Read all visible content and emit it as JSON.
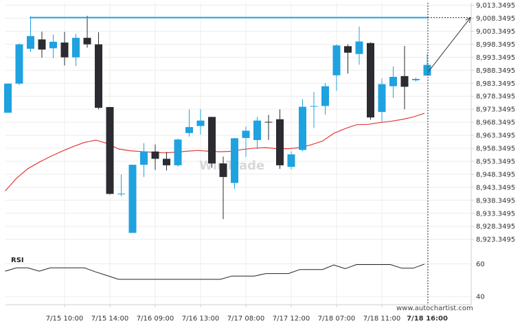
{
  "colors": {
    "bullish": "#1fa2e0",
    "bearish": "#2b2b31",
    "moving_average": "#e23a3a",
    "resistance": "#1fa2e0",
    "projection": "#333333",
    "rsi": "#222222",
    "grid": "#ececec",
    "axis": "#cfcfcf"
  },
  "watermark": "WinTrade",
  "credit": "www.autochartist.com",
  "chart_data": {
    "type": "candlestick",
    "y_ticks": [
      "9,013.3495",
      "9,008.3495",
      "9,003.3495",
      "8,998.3495",
      "8,993.3495",
      "8,988.3495",
      "8,983.3495",
      "8,978.3495",
      "8,973.3495",
      "8,968.3495",
      "8,963.3495",
      "8,958.3495",
      "8,953.3495",
      "8,948.3495",
      "8,943.3495",
      "8,938.3495",
      "8,933.3495",
      "8,928.3495",
      "8,923.3495"
    ],
    "y_tick_values": [
      9013.3495,
      9008.3495,
      9003.3495,
      8998.3495,
      8993.3495,
      8988.3495,
      8983.3495,
      8978.3495,
      8973.3495,
      8968.3495,
      8963.3495,
      8958.3495,
      8953.3495,
      8948.3495,
      8943.3495,
      8938.3495,
      8933.3495,
      8928.3495,
      8923.3495
    ],
    "ylim": [
      8919.3,
      9014.3
    ],
    "x_labels": [
      "7/15 10:00",
      "7/15 14:00",
      "7/16 09:00",
      "7/16 13:00",
      "7/17 08:00",
      "7/17 12:00",
      "7/18 07:00",
      "7/18 11:00",
      "7/18 16:00"
    ],
    "x_label_index": [
      5,
      9,
      13,
      17,
      21,
      25,
      29,
      33,
      37
    ],
    "x_label_bold_index": 8,
    "candles": [
      {
        "o": 8972.0,
        "h": 8983.2,
        "l": 8972.0,
        "c": 8983.2
      },
      {
        "o": 8983.2,
        "h": 8998.7,
        "l": 8982.6,
        "c": 8998.3
      },
      {
        "o": 8996.6,
        "h": 9009.2,
        "l": 8995.4,
        "c": 9001.5
      },
      {
        "o": 9000.2,
        "h": 9003.2,
        "l": 8993.2,
        "c": 8996.3
      },
      {
        "o": 8996.8,
        "h": 9002.1,
        "l": 8993.0,
        "c": 8999.3
      },
      {
        "o": 8999.0,
        "h": 9003.1,
        "l": 8990.2,
        "c": 8993.3
      },
      {
        "o": 8993.3,
        "h": 9002.3,
        "l": 8990.0,
        "c": 9000.8
      },
      {
        "o": 9000.8,
        "h": 9009.3,
        "l": 8997.0,
        "c": 8998.3
      },
      {
        "o": 8998.3,
        "h": 9003.0,
        "l": 8973.3,
        "c": 8973.9
      },
      {
        "o": 8974.2,
        "h": 8974.2,
        "l": 8940.6,
        "c": 8940.8
      },
      {
        "o": 8940.9,
        "h": 8948.3,
        "l": 8939.9,
        "c": 8940.9
      },
      {
        "o": 8925.8,
        "h": 8952.0,
        "l": 8925.8,
        "c": 8952.0
      },
      {
        "o": 8952.0,
        "h": 8960.3,
        "l": 8947.3,
        "c": 8957.1
      },
      {
        "o": 8957.1,
        "h": 8959.8,
        "l": 8950.0,
        "c": 8954.3
      },
      {
        "o": 8954.3,
        "h": 8956.9,
        "l": 8949.8,
        "c": 8951.8
      },
      {
        "o": 8951.8,
        "h": 8962.1,
        "l": 8951.3,
        "c": 8961.7
      },
      {
        "o": 8964.2,
        "h": 8973.3,
        "l": 8962.8,
        "c": 8966.5
      },
      {
        "o": 8966.9,
        "h": 8973.3,
        "l": 8963.6,
        "c": 8969.0
      },
      {
        "o": 8970.4,
        "h": 8970.4,
        "l": 8950.8,
        "c": 8952.5
      },
      {
        "o": 8952.5,
        "h": 8955.2,
        "l": 8931.1,
        "c": 8947.3
      },
      {
        "o": 8945.0,
        "h": 8962.3,
        "l": 8942.7,
        "c": 8962.2
      },
      {
        "o": 8962.3,
        "h": 8966.7,
        "l": 8955.1,
        "c": 8965.1
      },
      {
        "o": 8961.5,
        "h": 8970.4,
        "l": 8958.1,
        "c": 8969.0
      },
      {
        "o": 8968.5,
        "h": 8971.2,
        "l": 8961.5,
        "c": 8968.4
      },
      {
        "o": 8969.5,
        "h": 8973.3,
        "l": 8950.4,
        "c": 8951.8
      },
      {
        "o": 8951.2,
        "h": 8957.1,
        "l": 8950.2,
        "c": 8956.0
      },
      {
        "o": 8957.7,
        "h": 8977.2,
        "l": 8957.2,
        "c": 8974.3
      },
      {
        "o": 8974.5,
        "h": 8980.0,
        "l": 8966.2,
        "c": 8974.6
      },
      {
        "o": 8974.6,
        "h": 8983.4,
        "l": 8971.3,
        "c": 8982.2
      },
      {
        "o": 8986.4,
        "h": 8998.3,
        "l": 8980.4,
        "c": 8997.9
      },
      {
        "o": 8997.6,
        "h": 8998.3,
        "l": 8987.1,
        "c": 8995.1
      },
      {
        "o": 8994.6,
        "h": 9005.2,
        "l": 8990.5,
        "c": 8999.4
      },
      {
        "o": 8998.8,
        "h": 8999.1,
        "l": 8969.3,
        "c": 8970.2
      },
      {
        "o": 8972.3,
        "h": 8985.2,
        "l": 8968.5,
        "c": 8983.0
      },
      {
        "o": 8982.2,
        "h": 8989.8,
        "l": 8977.7,
        "c": 8985.8
      },
      {
        "o": 8986.1,
        "h": 8997.7,
        "l": 8973.3,
        "c": 8982.0
      },
      {
        "o": 8984.5,
        "h": 8985.5,
        "l": 8984.0,
        "c": 8985.0
      },
      {
        "o": 8986.3,
        "h": 8994.6,
        "l": 8986.3,
        "c": 8990.4
      }
    ],
    "moving_average": [
      8941.9,
      8946.8,
      8950.5,
      8953.0,
      8955.2,
      8957.2,
      8959.0,
      8960.6,
      8961.5,
      8960.2,
      8958.1,
      8957.4,
      8957.1,
      8956.8,
      8956.6,
      8956.8,
      8957.2,
      8957.5,
      8957.2,
      8957.0,
      8957.2,
      8957.9,
      8958.4,
      8958.6,
      8958.2,
      8958.2,
      8958.6,
      8959.7,
      8961.1,
      8964.1,
      8965.9,
      8967.4,
      8967.5,
      8968.2,
      8968.7,
      8969.4,
      8970.4,
      8971.8
    ],
    "resistance_level": 9008.6,
    "projection_target": 9008.6,
    "rsi": {
      "label": "RSI",
      "ticks": [
        60,
        40
      ],
      "ylim": [
        35,
        66
      ],
      "values": [
        55.5,
        57.5,
        57.5,
        55.5,
        57.5,
        57.5,
        57.5,
        57.5,
        55.0,
        52.8,
        50.5,
        50.5,
        50.5,
        50.5,
        50.5,
        50.5,
        50.5,
        50.5,
        50.5,
        50.5,
        52.5,
        52.5,
        52.5,
        54.0,
        54.0,
        54.0,
        56.5,
        56.5,
        56.5,
        59.3,
        57.0,
        59.5,
        59.5,
        59.5,
        59.5,
        57.3,
        57.3,
        59.8
      ]
    }
  }
}
